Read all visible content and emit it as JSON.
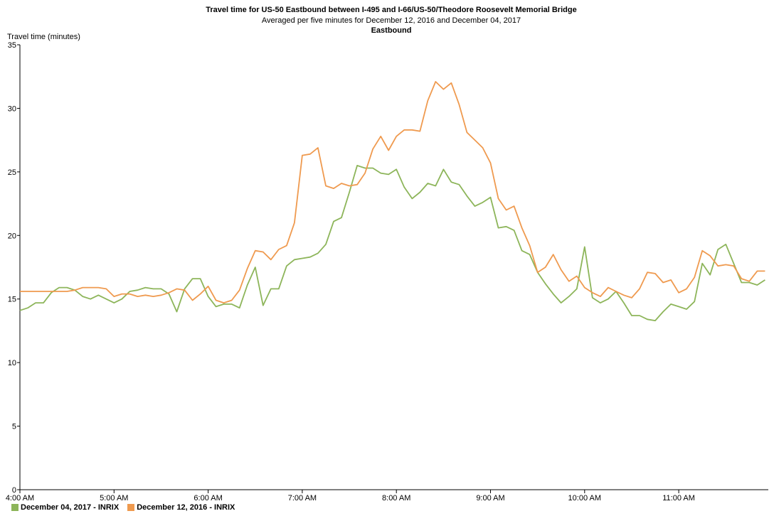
{
  "header": {
    "title": "Travel time for US-50  Eastbound between I-495 and I-66/US-50/Theodore Roosevelt Memorial Bridge",
    "subtitle": "Averaged per five minutes for December 12, 2016 and December 04, 2017",
    "direction": "Eastbound"
  },
  "legend": [
    {
      "label": "December 04, 2017 - INRIX",
      "color": "#8db55a"
    },
    {
      "label": "December 12, 2016 - INRIX",
      "color": "#ef9a4f"
    }
  ],
  "chart_data": {
    "type": "line",
    "title": "Travel time for US-50  Eastbound between I-495 and I-66/US-50/Theodore Roosevelt Memorial Bridge",
    "subtitle": "Averaged per five minutes for December 12, 2016 and December 04, 2017",
    "ylabel": "Travel time (minutes)",
    "xlabel": "",
    "ylim": [
      0,
      35
    ],
    "yticks": [
      "0",
      "5",
      "10",
      "15",
      "20",
      "25",
      "30",
      "35"
    ],
    "xticks": [
      "4:00 AM",
      "5:00 AM",
      "6:00 AM",
      "7:00 AM",
      "8:00 AM",
      "9:00 AM",
      "10:00 AM",
      "11:00 AM"
    ],
    "x_start": "4:00 AM",
    "x_interval_minutes": 5,
    "grid": false,
    "legend_position": "bottom-left",
    "series": [
      {
        "name": "December 04, 2017 - INRIX",
        "color": "#8db55a",
        "values": [
          14.1,
          14.3,
          14.7,
          14.7,
          15.5,
          15.9,
          15.9,
          15.7,
          15.2,
          15.0,
          15.3,
          15.0,
          14.7,
          15.0,
          15.6,
          15.7,
          15.9,
          15.8,
          15.8,
          15.4,
          14.0,
          15.8,
          16.6,
          16.6,
          15.2,
          14.4,
          14.6,
          14.6,
          14.3,
          16.1,
          17.5,
          14.5,
          15.8,
          15.8,
          17.6,
          18.1,
          18.2,
          18.3,
          18.6,
          19.3,
          21.1,
          21.4,
          23.4,
          25.5,
          25.3,
          25.3,
          24.9,
          24.8,
          25.2,
          23.8,
          22.9,
          23.4,
          24.1,
          23.9,
          25.2,
          24.2,
          24.0,
          23.1,
          22.3,
          22.6,
          23.0,
          20.6,
          20.7,
          20.4,
          18.8,
          18.5,
          17.1,
          16.2,
          15.4,
          14.7,
          15.2,
          15.8,
          19.1,
          15.1,
          14.7,
          15.0,
          15.6,
          14.7,
          13.7,
          13.7,
          13.4,
          13.3,
          14.0,
          14.6,
          14.4,
          14.2,
          14.8,
          17.8,
          16.9,
          18.9,
          19.3,
          17.8,
          16.3,
          16.3,
          16.1,
          16.5
        ]
      },
      {
        "name": "December 12, 2016 - INRIX",
        "color": "#ef9a4f",
        "values": [
          15.6,
          15.6,
          15.6,
          15.6,
          15.6,
          15.6,
          15.6,
          15.7,
          15.9,
          15.9,
          15.9,
          15.8,
          15.2,
          15.4,
          15.4,
          15.2,
          15.3,
          15.2,
          15.3,
          15.5,
          15.8,
          15.7,
          14.9,
          15.4,
          16.0,
          14.9,
          14.7,
          14.9,
          15.7,
          17.4,
          18.8,
          18.7,
          18.1,
          18.9,
          19.2,
          21.0,
          26.3,
          26.4,
          26.9,
          23.9,
          23.7,
          24.1,
          23.9,
          24.0,
          24.9,
          26.8,
          27.8,
          26.7,
          27.8,
          28.3,
          28.3,
          28.2,
          30.6,
          32.1,
          31.5,
          32.0,
          30.3,
          28.1,
          27.5,
          26.9,
          25.7,
          22.9,
          22.0,
          22.3,
          20.6,
          19.2,
          17.1,
          17.5,
          18.5,
          17.3,
          16.4,
          16.8,
          15.9,
          15.5,
          15.2,
          15.9,
          15.6,
          15.3,
          15.1,
          15.8,
          17.1,
          17.0,
          16.3,
          16.5,
          15.5,
          15.8,
          16.7,
          18.8,
          18.4,
          17.6,
          17.7,
          17.6,
          16.6,
          16.4,
          17.2,
          17.2
        ]
      }
    ]
  }
}
